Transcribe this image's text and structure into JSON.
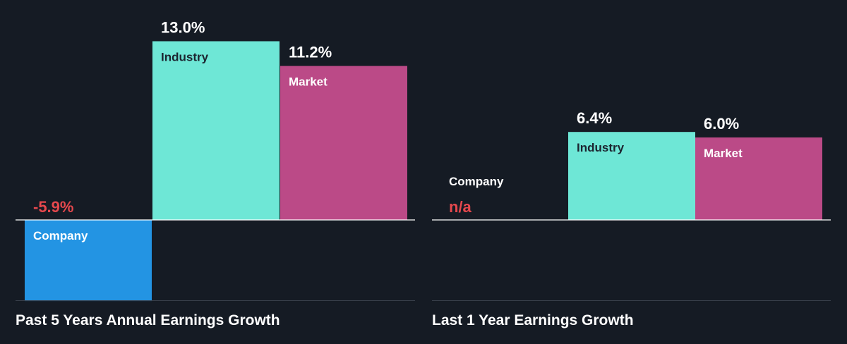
{
  "colors": {
    "background": "#151b24",
    "company": "#2394e3",
    "industry": "#6ee7d6",
    "market": "#bb4a87",
    "value_text": "#ffffff",
    "negative_text": "#e5484d",
    "label_on_light": "#1c2530",
    "label_on_dark": "#ffffff",
    "axis_line": "#ffffff",
    "bottom_line": "#39414c"
  },
  "chart_data": [
    {
      "type": "bar",
      "title": "Past 5 Years Annual Earnings Growth",
      "categories": [
        "Company",
        "Industry",
        "Market"
      ],
      "values": [
        -5.9,
        13.0,
        11.2
      ],
      "value_labels": [
        "-5.9%",
        "13.0%",
        "11.2%"
      ],
      "ylim": [
        -9.6,
        14.4
      ],
      "grid": false,
      "legend": "none"
    },
    {
      "type": "bar",
      "title": "Last 1 Year Earnings Growth",
      "categories": [
        "Company",
        "Industry",
        "Market"
      ],
      "values": [
        null,
        6.4,
        6.0
      ],
      "value_labels": [
        "n/a",
        "6.4%",
        "6.0%"
      ],
      "ylim": [
        -9.6,
        14.4
      ],
      "grid": false,
      "legend": "none"
    }
  ]
}
